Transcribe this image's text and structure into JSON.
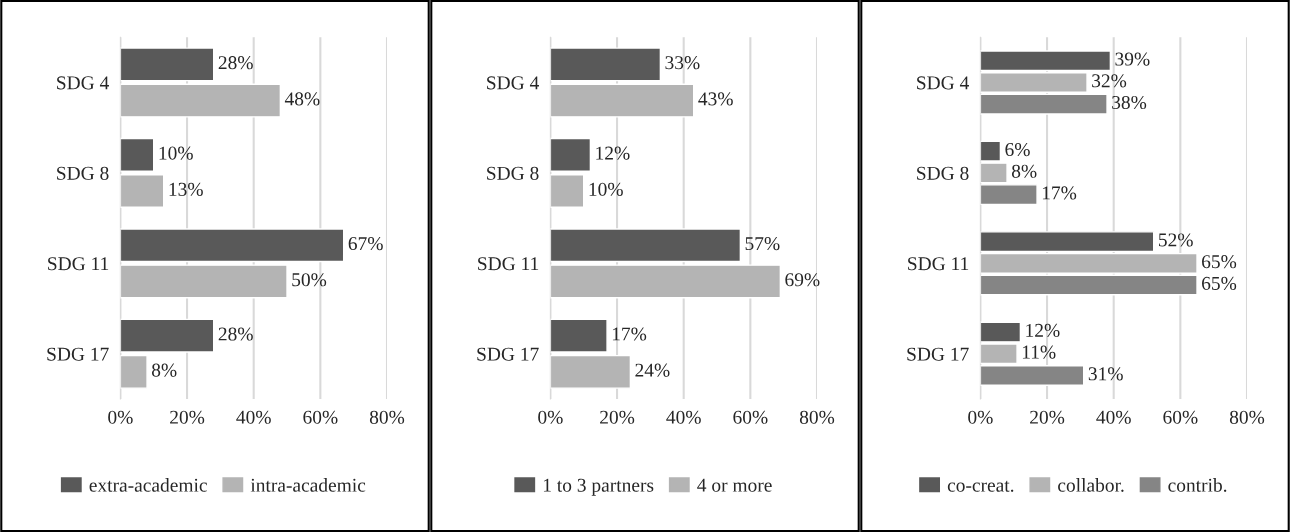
{
  "chart_data": [
    {
      "type": "bar",
      "orientation": "horizontal",
      "categories": [
        "SDG 4",
        "SDG 8",
        "SDG 11",
        "SDG 17"
      ],
      "xlim": [
        0,
        80
      ],
      "xticks": [
        {
          "value": 0,
          "label": "0%"
        },
        {
          "value": 20,
          "label": "20%"
        },
        {
          "value": 40,
          "label": "40%"
        },
        {
          "value": 60,
          "label": "60%"
        },
        {
          "value": 80,
          "label": "80%"
        }
      ],
      "grid": "x",
      "legend": "bottom",
      "series": [
        {
          "name": "extra-academic",
          "color": "#595959",
          "values": [
            28,
            10,
            67,
            28
          ],
          "value_labels": [
            "28%",
            "10%",
            "67%",
            "28%"
          ]
        },
        {
          "name": "intra-academic",
          "color": "#b4b4b4",
          "values": [
            48,
            13,
            50,
            8
          ],
          "value_labels": [
            "48%",
            "13%",
            "50%",
            "8%"
          ]
        }
      ]
    },
    {
      "type": "bar",
      "orientation": "horizontal",
      "categories": [
        "SDG 4",
        "SDG 8",
        "SDG 11",
        "SDG 17"
      ],
      "xlim": [
        0,
        80
      ],
      "xticks": [
        {
          "value": 0,
          "label": "0%"
        },
        {
          "value": 20,
          "label": "20%"
        },
        {
          "value": 40,
          "label": "40%"
        },
        {
          "value": 60,
          "label": "60%"
        },
        {
          "value": 80,
          "label": "80%"
        }
      ],
      "grid": "x",
      "legend": "bottom",
      "series": [
        {
          "name": "1 to 3 partners",
          "color": "#595959",
          "values": [
            33,
            12,
            57,
            17
          ],
          "value_labels": [
            "33%",
            "12%",
            "57%",
            "17%"
          ]
        },
        {
          "name": "4 or more",
          "color": "#b4b4b4",
          "values": [
            43,
            10,
            69,
            24
          ],
          "value_labels": [
            "43%",
            "10%",
            "69%",
            "24%"
          ]
        }
      ]
    },
    {
      "type": "bar",
      "orientation": "horizontal",
      "categories": [
        "SDG 4",
        "SDG 8",
        "SDG 11",
        "SDG 17"
      ],
      "xlim": [
        0,
        80
      ],
      "xticks": [
        {
          "value": 0,
          "label": "0%"
        },
        {
          "value": 20,
          "label": "20%"
        },
        {
          "value": 40,
          "label": "40%"
        },
        {
          "value": 60,
          "label": "60%"
        },
        {
          "value": 80,
          "label": "80%"
        }
      ],
      "grid": "x",
      "legend": "bottom",
      "series": [
        {
          "name": "co-creat.",
          "color": "#595959",
          "values": [
            39,
            6,
            52,
            12
          ],
          "value_labels": [
            "39%",
            "6%",
            "52%",
            "12%"
          ]
        },
        {
          "name": "collabor.",
          "color": "#b4b4b4",
          "values": [
            32,
            8,
            65,
            11
          ],
          "value_labels": [
            "32%",
            "8%",
            "65%",
            "11%"
          ]
        },
        {
          "name": "contrib.",
          "color": "#858585",
          "values": [
            38,
            17,
            65,
            31
          ],
          "value_labels": [
            "38%",
            "17%",
            "65%",
            "31%"
          ]
        }
      ]
    }
  ]
}
